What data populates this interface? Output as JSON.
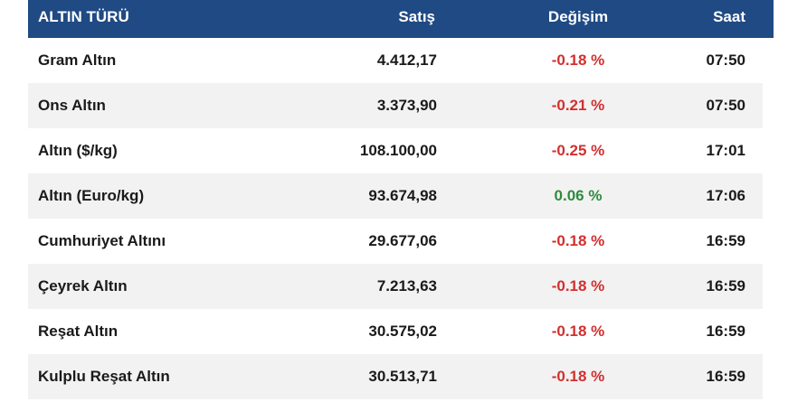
{
  "header": {
    "type_label": "ALTIN TÜRÜ",
    "price_label": "Satış",
    "change_label": "Değişim",
    "time_label": "Saat"
  },
  "colors": {
    "header_bg": "#1f4a84",
    "row_alt_bg": "#f2f2f2",
    "negative": "#d32f2f",
    "positive": "#2e8b3e"
  },
  "rows": [
    {
      "name": "Gram Altın",
      "price": "4.412,17",
      "change": "-0.18 %",
      "trend": "negative",
      "time": "07:50"
    },
    {
      "name": "Ons Altın",
      "price": "3.373,90",
      "change": "-0.21 %",
      "trend": "negative",
      "time": "07:50"
    },
    {
      "name": "Altın ($/kg)",
      "price": "108.100,00",
      "change": "-0.25 %",
      "trend": "negative",
      "time": "17:01"
    },
    {
      "name": "Altın (Euro/kg)",
      "price": "93.674,98",
      "change": "0.06 %",
      "trend": "positive",
      "time": "17:06"
    },
    {
      "name": "Cumhuriyet Altını",
      "price": "29.677,06",
      "change": "-0.18 %",
      "trend": "negative",
      "time": "16:59"
    },
    {
      "name": "Çeyrek Altın",
      "price": "7.213,63",
      "change": "-0.18 %",
      "trend": "negative",
      "time": "16:59"
    },
    {
      "name": "Reşat Altın",
      "price": "30.575,02",
      "change": "-0.18 %",
      "trend": "negative",
      "time": "16:59"
    },
    {
      "name": "Kulplu Reşat Altın",
      "price": "30.513,71",
      "change": "-0.18 %",
      "trend": "negative",
      "time": "16:59"
    }
  ]
}
